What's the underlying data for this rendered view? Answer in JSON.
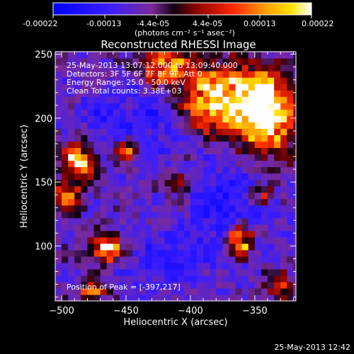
{
  "colorbar": {
    "tick_labels": [
      "-0.00022",
      "-0.00013",
      "-4.4e-05",
      "4.4e-05",
      "0.00013",
      "0.00022"
    ],
    "unit_label": "(photons cm⁻² s⁻¹ asec⁻²)"
  },
  "title": "Reconstructed RHESSI Image",
  "info": {
    "time_range": "25-May-2013 13:07:12.000 to 13:09:40.000",
    "detectors": "Detectors: 3F 5F 6F 7F 8F 9F, Att 0",
    "energy_range": "Energy Range: 25.0 - 50.0 keV",
    "method_counts": "Clean     Total counts: 3.38E+03"
  },
  "peak_label": "Position of Peak = [-397,217]",
  "timestamp": "25-May-2013 12:42",
  "chart_data": {
    "type": "heatmap",
    "title": "Reconstructed RHESSI Image",
    "xlabel": "Heliocentric X (arcsec)",
    "ylabel": "Heliocentric Y (arcsec)",
    "xlim": [
      -505,
      -318
    ],
    "ylim": [
      57,
      252
    ],
    "x_ticks": [
      -500,
      -450,
      -400,
      -350
    ],
    "x_tick_labels": [
      "−500",
      "−450",
      "−400",
      "−350"
    ],
    "y_ticks": [
      100,
      150,
      200,
      250
    ],
    "y_tick_labels": [
      "100",
      "150",
      "200",
      "250"
    ],
    "value_range": [
      -0.00022,
      0.00022
    ],
    "peak_position": [
      -397,
      217
    ],
    "colormap": [
      "#0000ff",
      "#3a1dff",
      "#6a2aa8",
      "#000000",
      "#8a0000",
      "#ff2a00",
      "#ff9b00",
      "#ffe200",
      "#ffffff"
    ],
    "bright_regions": [
      {
        "x": -370,
        "y": 215,
        "sx": 35,
        "sy": 25,
        "amp": 1.0
      },
      {
        "x": -340,
        "y": 200,
        "sx": 20,
        "sy": 30,
        "amp": 0.8
      },
      {
        "x": -420,
        "y": 240,
        "sx": 20,
        "sy": 12,
        "amp": 0.7
      },
      {
        "x": -487,
        "y": 168,
        "sx": 12,
        "sy": 15,
        "amp": 0.8
      },
      {
        "x": -495,
        "y": 140,
        "sx": 10,
        "sy": 12,
        "amp": 0.6
      },
      {
        "x": -465,
        "y": 98,
        "sx": 12,
        "sy": 10,
        "amp": 0.85
      },
      {
        "x": -362,
        "y": 105,
        "sx": 10,
        "sy": 12,
        "amp": 0.9
      },
      {
        "x": -450,
        "y": 175,
        "sx": 10,
        "sy": 8,
        "amp": 0.6
      },
      {
        "x": -475,
        "y": 65,
        "sx": 10,
        "sy": 8,
        "amp": 0.6
      },
      {
        "x": -330,
        "y": 70,
        "sx": 10,
        "sy": 10,
        "amp": 0.5
      },
      {
        "x": -410,
        "y": 150,
        "sx": 10,
        "sy": 8,
        "amp": 0.4
      },
      {
        "x": -345,
        "y": 140,
        "sx": 8,
        "sy": 8,
        "amp": 0.5
      }
    ],
    "dim_regions": [
      {
        "x": -430,
        "y": 200,
        "sx": 25,
        "sy": 30,
        "amp": 0.7
      },
      {
        "x": -370,
        "y": 130,
        "sx": 30,
        "sy": 40,
        "amp": 0.8
      },
      {
        "x": -420,
        "y": 90,
        "sx": 30,
        "sy": 25,
        "amp": 0.6
      },
      {
        "x": -470,
        "y": 200,
        "sx": 20,
        "sy": 20,
        "amp": 0.5
      }
    ]
  }
}
